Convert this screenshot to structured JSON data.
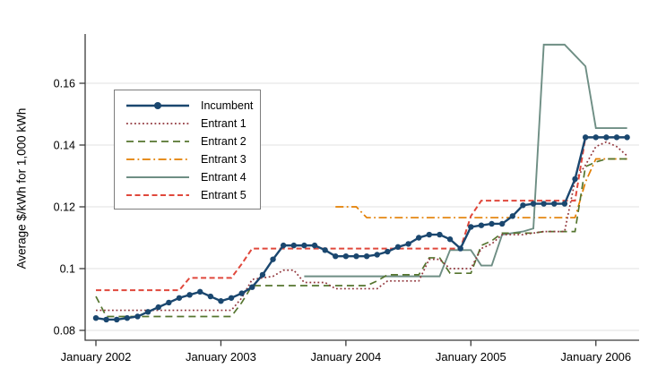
{
  "chart_data": {
    "type": "line",
    "title": "",
    "xlabel": "",
    "ylabel": "Average $/kWh for 1,000 kWh",
    "x_start": "2002-01",
    "x_freq": "monthly",
    "x_tick_labels": [
      "January 2002",
      "January 2003",
      "January 2004",
      "January 2005",
      "January 2006"
    ],
    "y_ticks": [
      0.08,
      0.1,
      0.12,
      0.14,
      0.16
    ],
    "y_tick_labels": [
      "0.08",
      "0.1",
      "0.12",
      "0.14",
      "0.16"
    ],
    "ylim": [
      0.077,
      0.176
    ],
    "grid": "horizontal",
    "legend_position": "top-left-inside",
    "colors": {
      "incumbent": "#1a476f",
      "entrant1": "#90353b",
      "entrant2": "#55752f",
      "entrant3": "#e37e00",
      "entrant4": "#6e8e84",
      "entrant5": "#e0483c",
      "gridline": "#e0e0e0",
      "axis": "#3a3a3a"
    },
    "series": [
      {
        "name": "Incumbent",
        "color": "#1a476f",
        "style": "solid",
        "marker": "circle",
        "width": 2.4,
        "values": [
          0.084,
          0.0835,
          0.0835,
          0.084,
          0.0845,
          0.086,
          0.0875,
          0.089,
          0.0905,
          0.0915,
          0.0925,
          0.091,
          0.0895,
          0.0905,
          0.092,
          0.094,
          0.098,
          0.103,
          0.1075,
          0.1075,
          0.1075,
          0.1075,
          0.106,
          0.104,
          0.104,
          0.104,
          0.104,
          0.1045,
          0.1055,
          0.107,
          0.108,
          0.11,
          0.111,
          0.111,
          0.1095,
          0.1065,
          0.1135,
          0.114,
          0.1145,
          0.1145,
          0.117,
          0.1205,
          0.121,
          0.121,
          0.121,
          0.121,
          0.129,
          0.1425,
          0.1425,
          0.1425,
          0.1425,
          0.1425
        ]
      },
      {
        "name": "Entrant 1",
        "color": "#90353b",
        "style": "dotted",
        "marker": null,
        "width": 1.7,
        "values": [
          0.0865,
          0.0865,
          0.0865,
          0.0865,
          0.0865,
          0.0865,
          0.0865,
          0.0865,
          0.0865,
          0.0865,
          0.0865,
          0.0865,
          0.0865,
          0.0865,
          0.0905,
          0.0965,
          0.097,
          0.0975,
          0.0995,
          0.0995,
          0.0955,
          0.0955,
          0.0955,
          0.0935,
          0.0935,
          0.0935,
          0.0935,
          0.0935,
          0.096,
          0.096,
          0.096,
          0.096,
          0.103,
          0.103,
          0.1,
          0.1,
          0.1,
          0.1065,
          0.108,
          0.111,
          0.111,
          0.111,
          0.1115,
          0.112,
          0.112,
          0.112,
          0.1285,
          0.1335,
          0.1395,
          0.141,
          0.1395,
          0.1365
        ]
      },
      {
        "name": "Entrant 2",
        "color": "#55752f",
        "style": "dashed",
        "marker": null,
        "width": 1.7,
        "values": [
          0.091,
          0.0845,
          0.0845,
          0.0845,
          0.0845,
          0.0845,
          0.0845,
          0.0845,
          0.0845,
          0.0845,
          0.0845,
          0.0845,
          0.0845,
          0.0845,
          0.089,
          0.0945,
          0.0945,
          0.0945,
          0.0945,
          0.0945,
          0.0945,
          0.0945,
          0.0945,
          0.0945,
          0.0945,
          0.0945,
          0.0945,
          0.096,
          0.098,
          0.098,
          0.098,
          0.098,
          0.1035,
          0.1035,
          0.0985,
          0.0985,
          0.0985,
          0.1075,
          0.109,
          0.1115,
          0.1115,
          0.1115,
          0.1115,
          0.112,
          0.112,
          0.112,
          0.112,
          0.133,
          0.1345,
          0.1355,
          0.1355,
          0.1355
        ]
      },
      {
        "name": "Entrant 3",
        "color": "#e37e00",
        "style": "dashdot",
        "marker": null,
        "width": 1.7,
        "values": [
          null,
          null,
          null,
          null,
          null,
          null,
          null,
          null,
          null,
          null,
          null,
          null,
          null,
          null,
          null,
          null,
          null,
          null,
          null,
          null,
          null,
          null,
          null,
          0.12,
          0.12,
          0.12,
          0.1165,
          0.1165,
          0.1165,
          0.1165,
          0.1165,
          0.1165,
          0.1165,
          0.1165,
          0.1165,
          0.1165,
          0.1165,
          0.1165,
          0.1165,
          0.1165,
          0.1165,
          0.1165,
          0.1165,
          0.1165,
          0.1165,
          0.1165,
          0.1165,
          0.128,
          0.1355,
          0.1355,
          0.1355,
          0.1355
        ]
      },
      {
        "name": "Entrant 4",
        "color": "#6e8e84",
        "style": "solid",
        "marker": null,
        "width": 1.9,
        "values": [
          null,
          null,
          null,
          null,
          null,
          null,
          null,
          null,
          null,
          null,
          null,
          null,
          null,
          null,
          null,
          null,
          null,
          null,
          null,
          null,
          0.0975,
          0.0975,
          0.0975,
          0.0975,
          0.0975,
          0.0975,
          0.0975,
          0.0975,
          0.0975,
          0.0975,
          0.0975,
          0.0975,
          0.0975,
          0.0975,
          0.106,
          0.106,
          0.106,
          0.101,
          0.101,
          0.111,
          0.1115,
          0.112,
          0.113,
          0.1725,
          0.1725,
          0.1725,
          0.169,
          0.1655,
          0.1455,
          0.1455,
          0.1455,
          0.1455
        ]
      },
      {
        "name": "Entrant 5",
        "color": "#e0483c",
        "style": "shortdash",
        "marker": null,
        "width": 2.0,
        "values": [
          0.093,
          0.093,
          0.093,
          0.093,
          0.093,
          0.093,
          0.093,
          0.093,
          0.093,
          0.097,
          0.097,
          0.097,
          0.097,
          0.097,
          0.1015,
          0.1065,
          0.1065,
          0.1065,
          0.1065,
          0.1065,
          0.1065,
          0.1065,
          0.1065,
          0.1065,
          0.1065,
          0.1065,
          0.1065,
          0.1065,
          0.1065,
          0.1065,
          0.1065,
          0.1065,
          0.1065,
          0.1065,
          0.1065,
          0.1065,
          0.117,
          0.122,
          0.122,
          0.122,
          0.122,
          0.122,
          0.122,
          0.122,
          0.122,
          0.122,
          0.122,
          0.1425,
          0.1425,
          0.1425,
          0.1425,
          0.1425
        ]
      }
    ]
  },
  "legend": {
    "items": [
      "Incumbent",
      "Entrant 1",
      "Entrant 2",
      "Entrant 3",
      "Entrant 4",
      "Entrant 5"
    ]
  }
}
